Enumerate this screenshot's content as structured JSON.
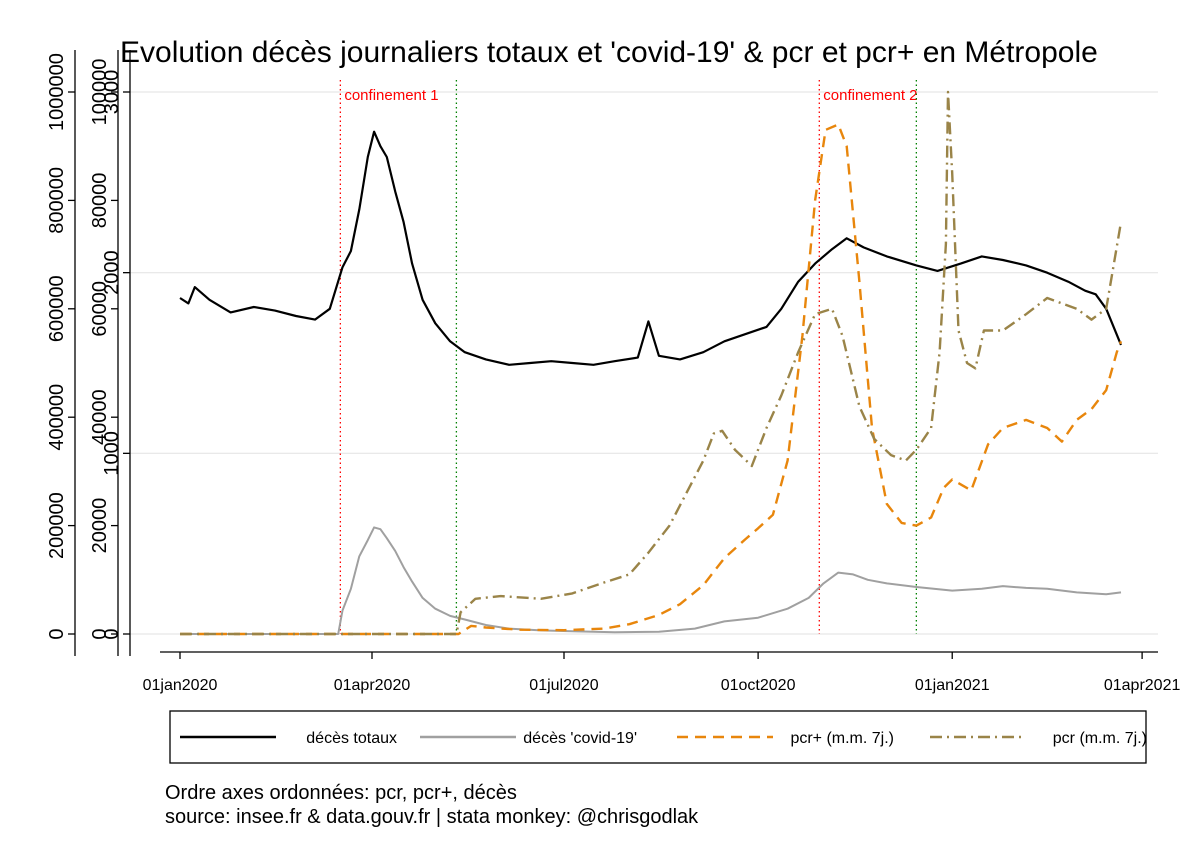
{
  "chart_data": {
    "type": "line",
    "title": "Evolution décès journaliers totaux et 'covid-19' & pcr et pcr+ en Métropole",
    "x_ticks": [
      "01jan2020",
      "01apr2020",
      "01jul2020",
      "01oct2020",
      "01jan2021",
      "01apr2021"
    ],
    "xlim": [
      "2020-01-01",
      "2021-04-01"
    ],
    "axes": [
      {
        "name": "pcr",
        "ticks": [
          "0",
          "200000",
          "400000",
          "600000",
          "800000",
          "1000000"
        ],
        "range": [
          0,
          1000000
        ]
      },
      {
        "name": "pcr+",
        "ticks": [
          "0",
          "20000",
          "40000",
          "60000",
          "80000",
          "100000"
        ],
        "range": [
          0,
          100000
        ]
      },
      {
        "name": "décès",
        "ticks": [
          "0",
          "1000",
          "2000",
          "3000"
        ],
        "range": [
          0,
          3000
        ]
      }
    ],
    "annotations": [
      {
        "date": "2020-03-17",
        "label": "confinement 1",
        "color": "#ff0000"
      },
      {
        "date": "2020-05-11",
        "label": "",
        "color": "#008000"
      },
      {
        "date": "2020-10-30",
        "label": "confinement 2",
        "color": "#ff0000"
      },
      {
        "date": "2020-12-15",
        "label": "",
        "color": "#008000"
      }
    ],
    "series": [
      {
        "name": "décès totaux",
        "axis": "décès",
        "color": "#000000",
        "dash": "solid",
        "points": [
          [
            "2020-01-01",
            1860
          ],
          [
            "2020-01-05",
            1830
          ],
          [
            "2020-01-08",
            1920
          ],
          [
            "2020-01-15",
            1850
          ],
          [
            "2020-01-25",
            1780
          ],
          [
            "2020-02-05",
            1810
          ],
          [
            "2020-02-15",
            1790
          ],
          [
            "2020-02-25",
            1760
          ],
          [
            "2020-03-05",
            1740
          ],
          [
            "2020-03-12",
            1800
          ],
          [
            "2020-03-18",
            2030
          ],
          [
            "2020-03-22",
            2120
          ],
          [
            "2020-03-26",
            2350
          ],
          [
            "2020-03-30",
            2640
          ],
          [
            "2020-04-02",
            2780
          ],
          [
            "2020-04-05",
            2700
          ],
          [
            "2020-04-08",
            2640
          ],
          [
            "2020-04-12",
            2450
          ],
          [
            "2020-04-16",
            2280
          ],
          [
            "2020-04-20",
            2050
          ],
          [
            "2020-04-25",
            1850
          ],
          [
            "2020-05-01",
            1720
          ],
          [
            "2020-05-08",
            1620
          ],
          [
            "2020-05-15",
            1560
          ],
          [
            "2020-05-25",
            1520
          ],
          [
            "2020-06-05",
            1490
          ],
          [
            "2020-06-15",
            1500
          ],
          [
            "2020-06-25",
            1510
          ],
          [
            "2020-07-05",
            1500
          ],
          [
            "2020-07-15",
            1490
          ],
          [
            "2020-07-25",
            1510
          ],
          [
            "2020-08-05",
            1530
          ],
          [
            "2020-08-10",
            1730
          ],
          [
            "2020-08-15",
            1540
          ],
          [
            "2020-08-25",
            1520
          ],
          [
            "2020-09-05",
            1560
          ],
          [
            "2020-09-15",
            1620
          ],
          [
            "2020-09-25",
            1660
          ],
          [
            "2020-10-05",
            1700
          ],
          [
            "2020-10-12",
            1800
          ],
          [
            "2020-10-20",
            1950
          ],
          [
            "2020-10-28",
            2050
          ],
          [
            "2020-11-05",
            2130
          ],
          [
            "2020-11-12",
            2190
          ],
          [
            "2020-11-20",
            2140
          ],
          [
            "2020-12-01",
            2090
          ],
          [
            "2020-12-15",
            2040
          ],
          [
            "2020-12-25",
            2010
          ],
          [
            "2021-01-05",
            2050
          ],
          [
            "2021-01-15",
            2090
          ],
          [
            "2021-01-25",
            2070
          ],
          [
            "2021-02-05",
            2040
          ],
          [
            "2021-02-15",
            2000
          ],
          [
            "2021-02-25",
            1950
          ],
          [
            "2021-03-05",
            1900
          ],
          [
            "2021-03-10",
            1880
          ],
          [
            "2021-03-15",
            1800
          ],
          [
            "2021-03-22",
            1600
          ]
        ]
      },
      {
        "name": "décès 'covid-19'",
        "axis": "décès",
        "color": "#a0a0a0",
        "dash": "solid",
        "points": [
          [
            "2020-01-01",
            0
          ],
          [
            "2020-03-16",
            0
          ],
          [
            "2020-03-18",
            130
          ],
          [
            "2020-03-22",
            250
          ],
          [
            "2020-03-26",
            430
          ],
          [
            "2020-03-30",
            520
          ],
          [
            "2020-04-02",
            590
          ],
          [
            "2020-04-05",
            580
          ],
          [
            "2020-04-08",
            530
          ],
          [
            "2020-04-12",
            460
          ],
          [
            "2020-04-16",
            370
          ],
          [
            "2020-04-20",
            290
          ],
          [
            "2020-04-25",
            200
          ],
          [
            "2020-05-01",
            140
          ],
          [
            "2020-05-08",
            100
          ],
          [
            "2020-05-15",
            80
          ],
          [
            "2020-05-25",
            50
          ],
          [
            "2020-06-05",
            30
          ],
          [
            "2020-06-20",
            20
          ],
          [
            "2020-07-05",
            15
          ],
          [
            "2020-07-25",
            10
          ],
          [
            "2020-08-15",
            12
          ],
          [
            "2020-09-01",
            30
          ],
          [
            "2020-09-15",
            70
          ],
          [
            "2020-10-01",
            90
          ],
          [
            "2020-10-15",
            140
          ],
          [
            "2020-10-25",
            200
          ],
          [
            "2020-11-01",
            280
          ],
          [
            "2020-11-08",
            340
          ],
          [
            "2020-11-15",
            330
          ],
          [
            "2020-11-22",
            300
          ],
          [
            "2020-12-01",
            280
          ],
          [
            "2020-12-15",
            260
          ],
          [
            "2021-01-01",
            240
          ],
          [
            "2021-01-15",
            250
          ],
          [
            "2021-01-25",
            265
          ],
          [
            "2021-02-05",
            255
          ],
          [
            "2021-02-15",
            250
          ],
          [
            "2021-03-01",
            230
          ],
          [
            "2021-03-15",
            220
          ],
          [
            "2021-03-22",
            230
          ]
        ]
      },
      {
        "name": "pcr+ (m.m. 7j.)",
        "axis": "pcr+",
        "color": "#e8860c",
        "dash": "dashed",
        "points": [
          [
            "2020-01-01",
            0
          ],
          [
            "2020-05-12",
            0
          ],
          [
            "2020-05-18",
            1500
          ],
          [
            "2020-05-25",
            1200
          ],
          [
            "2020-06-10",
            800
          ],
          [
            "2020-07-01",
            700
          ],
          [
            "2020-07-20",
            1000
          ],
          [
            "2020-08-01",
            1800
          ],
          [
            "2020-08-15",
            3500
          ],
          [
            "2020-08-25",
            5500
          ],
          [
            "2020-09-05",
            9000
          ],
          [
            "2020-09-15",
            14000
          ],
          [
            "2020-09-25",
            17500
          ],
          [
            "2020-10-01",
            19500
          ],
          [
            "2020-10-08",
            22000
          ],
          [
            "2020-10-15",
            32000
          ],
          [
            "2020-10-22",
            55000
          ],
          [
            "2020-10-28",
            80000
          ],
          [
            "2020-11-02",
            93000
          ],
          [
            "2020-11-08",
            94000
          ],
          [
            "2020-11-12",
            90000
          ],
          [
            "2020-11-18",
            65000
          ],
          [
            "2020-11-24",
            38000
          ],
          [
            "2020-12-01",
            24000
          ],
          [
            "2020-12-08",
            20500
          ],
          [
            "2020-12-15",
            20000
          ],
          [
            "2020-12-22",
            21500
          ],
          [
            "2020-12-28",
            27000
          ],
          [
            "2021-01-01",
            28500
          ],
          [
            "2021-01-10",
            26500
          ],
          [
            "2021-01-18",
            35000
          ],
          [
            "2021-01-25",
            38000
          ],
          [
            "2021-02-05",
            39500
          ],
          [
            "2021-02-15",
            38000
          ],
          [
            "2021-02-22",
            35500
          ],
          [
            "2021-03-01",
            39500
          ],
          [
            "2021-03-08",
            41500
          ],
          [
            "2021-03-15",
            45000
          ],
          [
            "2021-03-20",
            52000
          ],
          [
            "2021-03-22",
            54000
          ]
        ]
      },
      {
        "name": "pcr (m.m. 7j.)",
        "axis": "pcr",
        "color": "#9a8448",
        "dash": "dash-dot",
        "points": [
          [
            "2020-01-01",
            0
          ],
          [
            "2020-05-11",
            0
          ],
          [
            "2020-05-13",
            40000
          ],
          [
            "2020-05-20",
            65000
          ],
          [
            "2020-06-01",
            70000
          ],
          [
            "2020-06-20",
            65000
          ],
          [
            "2020-07-05",
            75000
          ],
          [
            "2020-07-20",
            95000
          ],
          [
            "2020-08-01",
            110000
          ],
          [
            "2020-08-10",
            150000
          ],
          [
            "2020-08-20",
            200000
          ],
          [
            "2020-08-28",
            260000
          ],
          [
            "2020-09-05",
            320000
          ],
          [
            "2020-09-10",
            370000
          ],
          [
            "2020-09-14",
            375000
          ],
          [
            "2020-09-20",
            340000
          ],
          [
            "2020-09-28",
            310000
          ],
          [
            "2020-10-05",
            380000
          ],
          [
            "2020-10-12",
            440000
          ],
          [
            "2020-10-20",
            520000
          ],
          [
            "2020-10-28",
            590000
          ],
          [
            "2020-11-05",
            600000
          ],
          [
            "2020-11-10",
            550000
          ],
          [
            "2020-11-18",
            420000
          ],
          [
            "2020-11-25",
            360000
          ],
          [
            "2020-12-03",
            330000
          ],
          [
            "2020-12-10",
            320000
          ],
          [
            "2020-12-15",
            340000
          ],
          [
            "2020-12-22",
            380000
          ],
          [
            "2020-12-26",
            520000
          ],
          [
            "2020-12-29",
            720000
          ],
          [
            "2020-12-30",
            1000000
          ],
          [
            "2021-01-01",
            850000
          ],
          [
            "2021-01-04",
            560000
          ],
          [
            "2021-01-08",
            500000
          ],
          [
            "2021-01-12",
            490000
          ],
          [
            "2021-01-16",
            560000
          ],
          [
            "2021-01-25",
            560000
          ],
          [
            "2021-02-05",
            590000
          ],
          [
            "2021-02-15",
            620000
          ],
          [
            "2021-02-22",
            610000
          ],
          [
            "2021-03-01",
            600000
          ],
          [
            "2021-03-08",
            580000
          ],
          [
            "2021-03-15",
            600000
          ],
          [
            "2021-03-22",
            760000
          ]
        ]
      }
    ]
  },
  "legend": {
    "items": [
      {
        "label": "décès totaux",
        "color": "#000000",
        "dash": "solid"
      },
      {
        "label": "décès 'covid-19'",
        "color": "#a0a0a0",
        "dash": "solid"
      },
      {
        "label": "pcr+ (m.m. 7j.)",
        "color": "#e8860c",
        "dash": "dashed"
      },
      {
        "label": "pcr (m.m. 7j.)",
        "color": "#9a8448",
        "dash": "dash-dot"
      }
    ]
  },
  "notes": {
    "line1": "Ordre axes ordonnées: pcr, pcr+, décès",
    "line2": "source: insee.fr & data.gouv.fr | stata monkey: @chrisgodlak"
  }
}
